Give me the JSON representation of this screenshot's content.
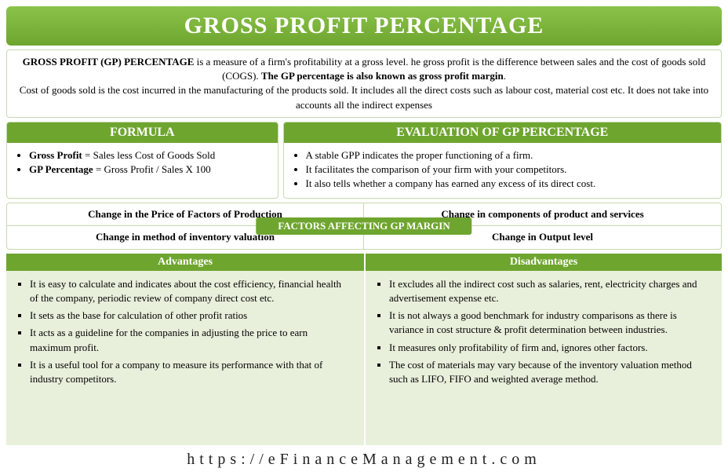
{
  "colors": {
    "primary_green": "#6ea52f",
    "light_green_bg": "#e8f0dc",
    "border_green": "#c8d8b0",
    "gradient_top": "#8bc34a",
    "gradient_bottom": "#6ea52f",
    "text": "#222222",
    "white": "#ffffff"
  },
  "title": "GROSS PROFIT PERCENTAGE",
  "definition": {
    "lead_bold": "GROSS PROFIT (GP) PERCENTAGE",
    "lead_rest": " is a measure of a firm's profitability at a gross level. he gross profit is the difference between sales and the cost of goods sold (COGS). ",
    "emph": "The GP percentage is also known as gross profit margin",
    "tail": "Cost of goods sold is the cost incurred in the manufacturing of the products sold. It includes all the direct costs such as labour cost, material cost etc. It does not take into accounts all the indirect expenses"
  },
  "formula": {
    "header": "FORMULA",
    "items": [
      {
        "label": "Gross Profit",
        "value": " = Sales less Cost of Goods Sold"
      },
      {
        "label": "GP Percentage",
        "value": " = Gross Profit / Sales X 100"
      }
    ]
  },
  "evaluation": {
    "header": "EVALUATION OF GP PERCENTAGE",
    "items": [
      "A stable GPP indicates the proper functioning of a firm.",
      "It facilitates the comparison of your firm with your competitors.",
      "It also tells whether a company has earned any excess of its direct cost."
    ]
  },
  "factors": {
    "badge": "FACTORS AFFECTING GP MARGIN",
    "cells": [
      "Change in the Price of Factors of Production",
      "Change in components of product and services",
      "Change in method of inventory valuation",
      "Change in Output level"
    ]
  },
  "advantages": {
    "header": "Advantages",
    "items": [
      "It is easy to calculate and indicates about the cost efficiency, financial health of the company, periodic review of company direct cost etc.",
      "It sets as the base for calculation of other profit ratios",
      "It acts as a guideline for the companies in adjusting the price to earn maximum profit.",
      "It is a useful tool for a company to measure its performance with that of industry competitors."
    ]
  },
  "disadvantages": {
    "header": "Disadvantages",
    "items": [
      "It excludes all the indirect cost such as salaries, rent, electricity charges and advertisement expense etc.",
      "It is not always a good benchmark for industry comparisons as there is variance in cost structure & profit determination between industries.",
      "It measures only profitability of firm and, ignores other factors.",
      "The cost of materials may vary because of the inventory valuation method such as LIFO, FIFO and weighted average method."
    ]
  },
  "footer_url": "https://eFinanceManagement.com"
}
